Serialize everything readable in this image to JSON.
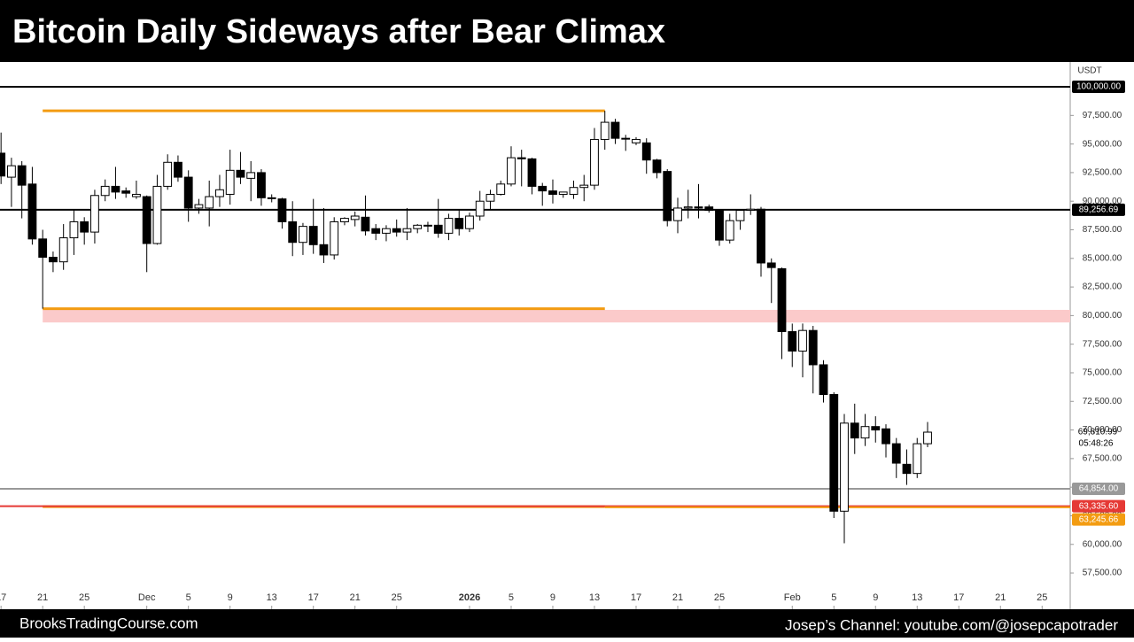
{
  "header": {
    "title": "Bitcoin Daily Sideways after Bear Climax"
  },
  "footer": {
    "left": "BrooksTradingCourse.com",
    "right": "Josep’s Channel: youtube.com/@josepcapotrader"
  },
  "chart_data": {
    "type": "candlestick",
    "currency": "USDT",
    "up_color": "#ffffff",
    "down_color": "#000000",
    "outline_color": "#000000",
    "xlim": [
      -0.1,
      102.7
    ],
    "ylim": [
      54330,
      102170
    ],
    "xticks": [
      {
        "value": 0,
        "label": "17"
      },
      {
        "value": 4,
        "label": "21"
      },
      {
        "value": 8,
        "label": "25"
      },
      {
        "value": 14,
        "label": "Dec"
      },
      {
        "value": 18,
        "label": "5"
      },
      {
        "value": 22,
        "label": "9"
      },
      {
        "value": 26,
        "label": "13"
      },
      {
        "value": 30,
        "label": "17"
      },
      {
        "value": 34,
        "label": "21"
      },
      {
        "value": 38,
        "label": "25"
      },
      {
        "value": 45,
        "label": "2026"
      },
      {
        "value": 49,
        "label": "5"
      },
      {
        "value": 53,
        "label": "9"
      },
      {
        "value": 57,
        "label": "13"
      },
      {
        "value": 61,
        "label": "17"
      },
      {
        "value": 65,
        "label": "21"
      },
      {
        "value": 69,
        "label": "25"
      },
      {
        "value": 76,
        "label": "Feb"
      },
      {
        "value": 80,
        "label": "5"
      },
      {
        "value": 84,
        "label": "9"
      },
      {
        "value": 88,
        "label": "13"
      },
      {
        "value": 92,
        "label": "17"
      },
      {
        "value": 96,
        "label": "21"
      },
      {
        "value": 100,
        "label": "25"
      }
    ],
    "yticks": [
      {
        "value": 57500,
        "label": "57,500.00"
      },
      {
        "value": 60000,
        "label": "60,000.00"
      },
      {
        "value": 62500,
        "label": "62,500.00"
      },
      {
        "value": 65000,
        "label": "65,000.00"
      },
      {
        "value": 67500,
        "label": "67,500.00"
      },
      {
        "value": 70000,
        "label": "70,000.00"
      },
      {
        "value": 72500,
        "label": "72,500.00"
      },
      {
        "value": 75000,
        "label": "75,000.00"
      },
      {
        "value": 77500,
        "label": "77,500.00"
      },
      {
        "value": 80000,
        "label": "80,000.00"
      },
      {
        "value": 82500,
        "label": "82,500.00"
      },
      {
        "value": 85000,
        "label": "85,000.00"
      },
      {
        "value": 87500,
        "label": "87,500.00"
      },
      {
        "value": 90000,
        "label": "90,000.00"
      },
      {
        "value": 92500,
        "label": "92,500.00"
      },
      {
        "value": 95000,
        "label": "95,000.00"
      },
      {
        "value": 97500,
        "label": "97,500.00"
      }
    ],
    "x": [
      0,
      1,
      2,
      3,
      4,
      5,
      6,
      7,
      8,
      9,
      10,
      11,
      12,
      13,
      14,
      15,
      16,
      17,
      18,
      19,
      20,
      21,
      22,
      23,
      24,
      25,
      26,
      27,
      28,
      29,
      30,
      31,
      32,
      33,
      34,
      35,
      36,
      37,
      38,
      39,
      40,
      41,
      42,
      43,
      44,
      45,
      46,
      47,
      48,
      49,
      50,
      51,
      52,
      53,
      54,
      55,
      56,
      57,
      58,
      59,
      60,
      61,
      62,
      63,
      64,
      65,
      66,
      67,
      68,
      69,
      70,
      71,
      72,
      73,
      74,
      75,
      76,
      77,
      78,
      79,
      80,
      81,
      82,
      83,
      84,
      85,
      86,
      87,
      88,
      89
    ],
    "open": [
      94200,
      92100,
      93100,
      91500,
      86700,
      85100,
      84700,
      86800,
      88200,
      87300,
      90500,
      91300,
      90900,
      90400,
      90400,
      86300,
      91300,
      93400,
      92100,
      89400,
      89400,
      90400,
      90600,
      92700,
      92000,
      92500,
      90300,
      90200,
      88200,
      86400,
      87800,
      86200,
      85300,
      88200,
      88400,
      88600,
      87600,
      87200,
      87600,
      87300,
      87600,
      87900,
      87900,
      87200,
      88500,
      87600,
      88700,
      90000,
      90600,
      91500,
      93800,
      93700,
      91300,
      90900,
      90600,
      90600,
      91200,
      91400,
      95400,
      96900,
      95500,
      95100,
      95100,
      93600,
      92600,
      88300,
      89400,
      89500,
      89500,
      89200,
      86600,
      88300,
      89200,
      89300,
      84600,
      84100,
      78600,
      76900,
      78700,
      75700,
      73100,
      62900,
      70600,
      69300,
      70300,
      70100,
      68800,
      67000,
      66200,
      68800
    ],
    "high": [
      96000,
      93800,
      93500,
      93000,
      87500,
      85600,
      88000,
      89200,
      88600,
      91000,
      91900,
      93000,
      91200,
      91800,
      90500,
      92300,
      94100,
      94000,
      92700,
      90200,
      91800,
      92300,
      94500,
      94300,
      93500,
      92800,
      90600,
      90300,
      90000,
      88100,
      90200,
      89400,
      88600,
      88600,
      89100,
      90500,
      88000,
      87900,
      88400,
      89400,
      88000,
      88200,
      90200,
      88900,
      89200,
      89000,
      90900,
      91000,
      91800,
      94800,
      94500,
      93800,
      91600,
      91900,
      90800,
      91800,
      92300,
      96400,
      97900,
      97200,
      95800,
      95600,
      95500,
      93700,
      92800,
      90300,
      91000,
      91500,
      89700,
      89200,
      88900,
      89300,
      90600,
      89500,
      85000,
      84200,
      79300,
      79300,
      79100,
      76100,
      73300,
      71400,
      72300,
      71400,
      71200,
      70500,
      69300,
      68300,
      69300,
      70700
    ],
    "low": [
      91500,
      89500,
      88500,
      86200,
      80600,
      83800,
      84000,
      85300,
      86200,
      86300,
      90000,
      90200,
      90300,
      90200,
      83800,
      86200,
      91000,
      91700,
      88200,
      88900,
      87800,
      89500,
      89700,
      91500,
      90000,
      89600,
      89900,
      87600,
      85200,
      85300,
      85400,
      84600,
      84900,
      87900,
      87800,
      87000,
      86600,
      86500,
      86900,
      86600,
      87200,
      87300,
      86800,
      86600,
      87000,
      87300,
      88300,
      89300,
      90500,
      91300,
      91300,
      90600,
      89600,
      89800,
      90300,
      90200,
      90000,
      91000,
      94500,
      95000,
      94400,
      94900,
      92400,
      92000,
      87800,
      87200,
      88500,
      88500,
      89000,
      86100,
      86300,
      87500,
      88800,
      83400,
      81100,
      76200,
      75500,
      74600,
      73200,
      72400,
      62300,
      60100,
      67900,
      68600,
      68900,
      67600,
      65800,
      65200,
      65800,
      68500
    ],
    "close": [
      92200,
      93100,
      91400,
      86700,
      85100,
      84700,
      86800,
      88200,
      87300,
      90500,
      91300,
      90800,
      90700,
      90600,
      86300,
      91300,
      93400,
      92100,
      89400,
      89700,
      90400,
      91000,
      92700,
      92100,
      92500,
      90300,
      90300,
      88200,
      86400,
      87800,
      86200,
      85300,
      88200,
      88500,
      88700,
      87400,
      87200,
      87600,
      87300,
      87600,
      87900,
      87900,
      87200,
      88500,
      87600,
      88700,
      90000,
      90600,
      91500,
      93800,
      93700,
      91300,
      90900,
      90600,
      90800,
      91200,
      91400,
      95400,
      96900,
      95500,
      95500,
      95400,
      93600,
      92500,
      88300,
      89400,
      89500,
      89400,
      89200,
      86600,
      88300,
      89200,
      89300,
      84600,
      84200,
      78600,
      76900,
      78700,
      75700,
      73100,
      62900,
      70600,
      69300,
      70300,
      70000,
      68800,
      67100,
      66200,
      68800,
      69810.99
    ],
    "last_price": {
      "value": 69810.99,
      "label": "69,810.99"
    },
    "countdown": "05:48:26",
    "levels": [
      {
        "value": 100000,
        "label": "100,000.00",
        "color": "#000000"
      },
      {
        "value": 89256.69,
        "label": "89,256.69",
        "color": "#000000"
      },
      {
        "value": 64854,
        "label": "64,854.00",
        "color": "#999999"
      },
      {
        "value": 63335.6,
        "label": "63,335.60",
        "color": "#e53935"
      },
      {
        "value": 63245.66,
        "label": "63,245.66",
        "color": "#f39c12",
        "x_from": 58
      }
    ],
    "segment_color": "#f39c12",
    "segments": [
      {
        "value": 97900,
        "x": [
          4,
          58
        ]
      },
      {
        "value": 80600,
        "x": [
          4,
          58
        ]
      },
      {
        "value": 63300,
        "x": [
          4,
          58
        ]
      }
    ],
    "band": {
      "range": [
        79400,
        80500
      ],
      "x": [
        4,
        102.7
      ],
      "color": "#fbcaca"
    }
  }
}
